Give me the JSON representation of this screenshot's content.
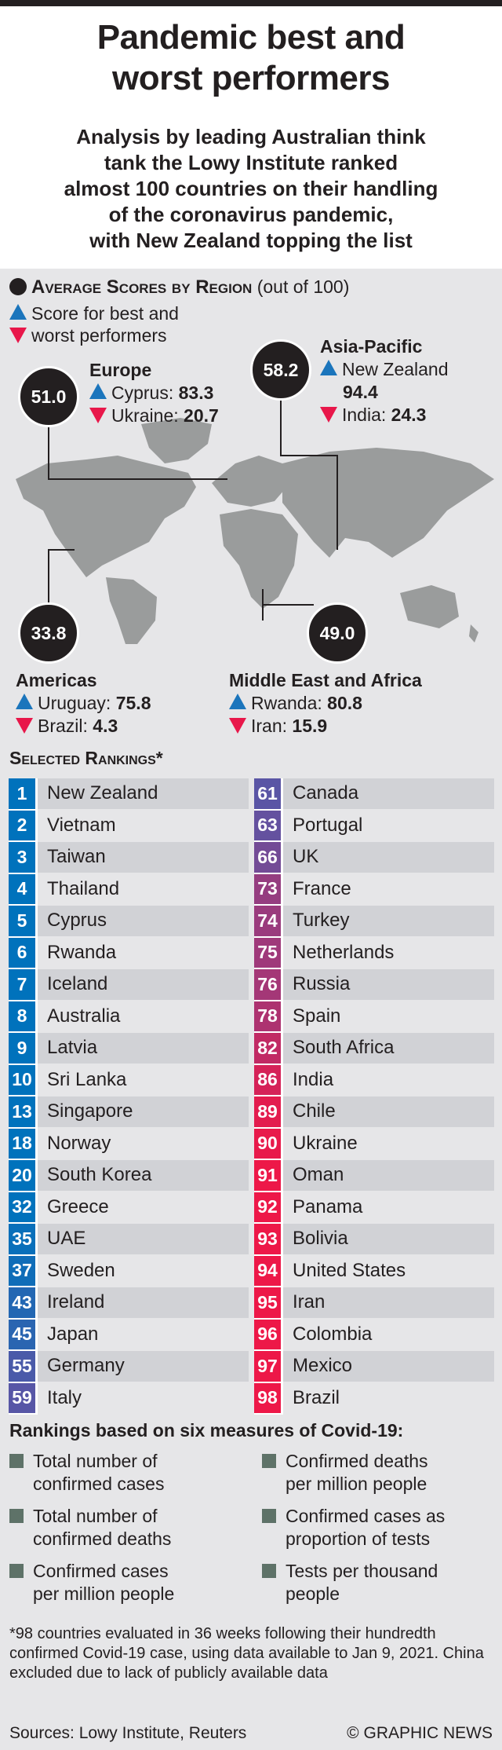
{
  "title": [
    "Pandemic best and",
    "worst performers"
  ],
  "subtitle": [
    "Analysis by leading Australian think",
    "tank the Lowy Institute ranked",
    "almost 100 countries on their handling",
    "of the coronavirus pandemic,",
    "with New Zealand topping the list"
  ],
  "legend": {
    "heading": "Average Scores by Region",
    "heading_suffix": "(out of 100)",
    "line1": "Score for best and",
    "line2": "worst performers"
  },
  "regions": {
    "europe": {
      "name": "Europe",
      "score": "51.0",
      "best": "Cyprus:",
      "best_score": "83.3",
      "worst": "Ukraine:",
      "worst_score": "20.7"
    },
    "asia": {
      "name": "Asia-Pacific",
      "score": "58.2",
      "best": "New Zealand",
      "best_score": "94.4",
      "worst": "India:",
      "worst_score": "24.3"
    },
    "americas": {
      "name": "Americas",
      "score": "33.8",
      "best": "Uruguay:",
      "best_score": "75.8",
      "worst": "Brazil:",
      "worst_score": "4.3"
    },
    "mea": {
      "name": "Middle East and Africa",
      "score": "49.0",
      "best": "Rwanda:",
      "best_score": "80.8",
      "worst": "Iran:",
      "worst_score": "15.9"
    }
  },
  "rankings": {
    "heading": "Selected Rankings*",
    "left": [
      [
        "1",
        "New Zealand"
      ],
      [
        "2",
        "Vietnam"
      ],
      [
        "3",
        "Taiwan"
      ],
      [
        "4",
        "Thailand"
      ],
      [
        "5",
        "Cyprus"
      ],
      [
        "6",
        "Rwanda"
      ],
      [
        "7",
        "Iceland"
      ],
      [
        "8",
        "Australia"
      ],
      [
        "9",
        "Latvia"
      ],
      [
        "10",
        "Sri Lanka"
      ],
      [
        "13",
        "Singapore"
      ],
      [
        "18",
        "Norway"
      ],
      [
        "20",
        "South Korea"
      ],
      [
        "32",
        "Greece"
      ],
      [
        "35",
        "UAE"
      ],
      [
        "37",
        "Sweden"
      ],
      [
        "43",
        "Ireland"
      ],
      [
        "45",
        "Japan"
      ],
      [
        "55",
        "Germany"
      ],
      [
        "59",
        "Italy"
      ]
    ],
    "right": [
      [
        "61",
        "Canada"
      ],
      [
        "63",
        "Portugal"
      ],
      [
        "66",
        "UK"
      ],
      [
        "73",
        "France"
      ],
      [
        "74",
        "Turkey"
      ],
      [
        "75",
        "Netherlands"
      ],
      [
        "76",
        "Russia"
      ],
      [
        "78",
        "Spain"
      ],
      [
        "82",
        "South Africa"
      ],
      [
        "86",
        "India"
      ],
      [
        "89",
        "Chile"
      ],
      [
        "90",
        "Ukraine"
      ],
      [
        "91",
        "Oman"
      ],
      [
        "92",
        "Panama"
      ],
      [
        "93",
        "Bolivia"
      ],
      [
        "94",
        "United States"
      ],
      [
        "95",
        "Iran"
      ],
      [
        "96",
        "Colombia"
      ],
      [
        "97",
        "Mexico"
      ],
      [
        "98",
        "Brazil"
      ]
    ]
  },
  "colors": {
    "best": "#0072bc",
    "mid": "#5a55a5",
    "worst": "#ed1848"
  },
  "measures": {
    "heading": "Rankings based on six measures of Covid-19:",
    "items": [
      [
        "Total number of",
        "confirmed cases"
      ],
      [
        "Confirmed deaths",
        "per million people"
      ],
      [
        "Total number of",
        "confirmed deaths"
      ],
      [
        "Confirmed cases as",
        "proportion of tests"
      ],
      [
        "Confirmed cases",
        "per million people"
      ],
      [
        "Tests per thousand",
        "people"
      ]
    ]
  },
  "footnote": "*98 countries evaluated in 36 weeks following their hundredth confirmed Covid-19 case, using data available to Jan 9, 2021. China excluded due to lack of publicly available data",
  "sources": "Sources: Lowy Institute, Reuters",
  "credit": "© GRAPHIC NEWS"
}
